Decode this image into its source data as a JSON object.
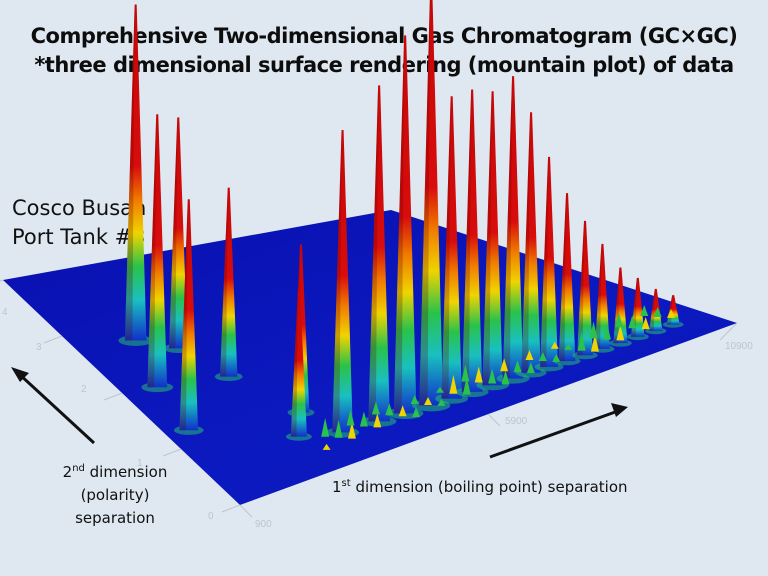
{
  "title": {
    "line1": "Comprehensive Two-dimensional Gas Chromatogram (GC×GC)",
    "line2": "*three dimensional surface rendering (mountain plot) of data"
  },
  "sample": {
    "line1": "Cosco Busan",
    "line2": "Port Tank #3"
  },
  "axes": {
    "y_label_sup_prefix": "2",
    "y_label_sup": "nd",
    "y_label_rest": " dimension",
    "y_label_line2": "(polarity)",
    "y_label_line3": "separation",
    "x_label_sup_prefix": "1",
    "x_label_sup": "st",
    "x_label_rest": " dimension (boiling point) separation"
  },
  "colors": {
    "background": "#dfe8f1",
    "plane": "#0a12b8",
    "peak_high": "#d40c0c",
    "peak_mid": "#f0d000",
    "peak_low": "#21c25a",
    "tick": "#bcc4cc",
    "arrow": "#111111"
  },
  "chart_data": {
    "type": "surface3d",
    "title": "Comprehensive Two-dimensional Gas Chromatogram (GC×GC)",
    "subtitle": "*three dimensional surface rendering (mountain plot) of data",
    "xlabel": "1st dimension (boiling point) separation",
    "ylabel": "2nd dimension (polarity) separation",
    "x_ticks": [
      "900",
      "5900",
      "10900"
    ],
    "y_ticks": [
      "0",
      "1",
      "2",
      "3",
      "4"
    ],
    "xlim": [
      900,
      10900
    ],
    "ylim": [
      0,
      4
    ],
    "colormap": "jet",
    "annotation": "Cosco Busan Port Tank #3",
    "peaks_description": "Homologous series of n-alkane peaks along the front diagonal (low 2nd-dimension), tallest near mid 1st-dimension; cluster of polar peaks at low 1st-dimension",
    "peaks": [
      {
        "x": 1300,
        "y": 1.2,
        "h": 0.55
      },
      {
        "x": 1500,
        "y": 1.9,
        "h": 0.65
      },
      {
        "x": 1900,
        "y": 2.6,
        "h": 0.8
      },
      {
        "x": 2400,
        "y": 2.3,
        "h": 0.55
      },
      {
        "x": 2700,
        "y": 1.7,
        "h": 0.45
      },
      {
        "x": 2800,
        "y": 0.6,
        "h": 0.35
      },
      {
        "x": 3200,
        "y": 0.9,
        "h": 0.4
      },
      {
        "x": 3500,
        "y": 0.45,
        "h": 0.72
      },
      {
        "x": 4200,
        "y": 0.42,
        "h": 0.8
      },
      {
        "x": 4700,
        "y": 0.4,
        "h": 0.9
      },
      {
        "x": 5200,
        "y": 0.38,
        "h": 1.0
      },
      {
        "x": 5600,
        "y": 0.37,
        "h": 0.72
      },
      {
        "x": 6000,
        "y": 0.36,
        "h": 0.72
      },
      {
        "x": 6400,
        "y": 0.35,
        "h": 0.7
      },
      {
        "x": 6800,
        "y": 0.34,
        "h": 0.72
      },
      {
        "x": 7150,
        "y": 0.33,
        "h": 0.62
      },
      {
        "x": 7500,
        "y": 0.32,
        "h": 0.5
      },
      {
        "x": 7850,
        "y": 0.31,
        "h": 0.4
      },
      {
        "x": 8200,
        "y": 0.3,
        "h": 0.32
      },
      {
        "x": 8550,
        "y": 0.3,
        "h": 0.25
      },
      {
        "x": 8900,
        "y": 0.29,
        "h": 0.18
      },
      {
        "x": 9250,
        "y": 0.29,
        "h": 0.14
      },
      {
        "x": 9600,
        "y": 0.28,
        "h": 0.1
      },
      {
        "x": 9950,
        "y": 0.28,
        "h": 0.07
      }
    ]
  }
}
